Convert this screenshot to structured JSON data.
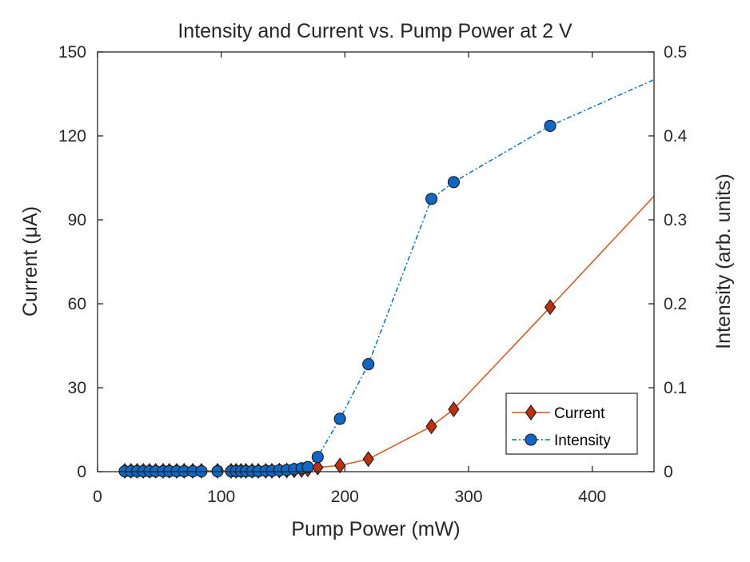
{
  "colors": {
    "current": "#d95319",
    "current_marker_fill": "#c0300f",
    "intensity": "#0072bd",
    "intensity_marker_fill": "#0e68c8",
    "axes": "#262626",
    "marker_edge": "#1a1a1a"
  },
  "chart_data": {
    "type": "line",
    "title": "Intensity and Current vs. Pump Power at 2 V",
    "xlabel": "Pump Power (mW)",
    "ylabel_left": "Current (μA)",
    "ylabel_right": "Intensity (arb. units)",
    "xlim": [
      0,
      450
    ],
    "ylim_left": [
      0,
      150
    ],
    "ylim_right": [
      0,
      0.5
    ],
    "xticks": [
      0,
      100,
      200,
      300,
      400
    ],
    "yticks_left": [
      0,
      30,
      60,
      90,
      120,
      150
    ],
    "yticks_right": [
      0,
      0.1,
      0.2,
      0.3,
      0.4,
      0.5
    ],
    "xtick_labels": [
      "0",
      "100",
      "200",
      "300",
      "400"
    ],
    "ytick_labels_left": [
      "0",
      "30",
      "60",
      "90",
      "120",
      "150"
    ],
    "ytick_labels_right": [
      "0",
      "0.1",
      "0.2",
      "0.3",
      "0.4",
      "0.5"
    ],
    "grid": false,
    "legend_position": "bottom-right",
    "series": [
      {
        "name": "Current",
        "axis": "left",
        "marker": "diamond",
        "line_style": "solid",
        "x": [
          22,
          27,
          32,
          37,
          42,
          47,
          53,
          58,
          64,
          70,
          77,
          84,
          97,
          108,
          112,
          116,
          120,
          125,
          130,
          136,
          141,
          147,
          153,
          159,
          165,
          170,
          178,
          196,
          219,
          270,
          288,
          366,
          450
        ],
        "y": [
          0.3,
          0.3,
          0.3,
          0.3,
          0.3,
          0.3,
          0.3,
          0.3,
          0.3,
          0.3,
          0.3,
          0.3,
          0.3,
          0.3,
          0.3,
          0.3,
          0.3,
          0.3,
          0.3,
          0.3,
          0.3,
          0.4,
          0.4,
          0.5,
          0.6,
          0.8,
          1.5,
          2.2,
          4.5,
          16.2,
          22.3,
          58.8,
          98.5
        ]
      },
      {
        "name": "Intensity",
        "axis": "right",
        "marker": "circle",
        "line_style": "dash-dot",
        "x": [
          22,
          27,
          32,
          37,
          42,
          47,
          53,
          58,
          64,
          70,
          77,
          84,
          97,
          108,
          112,
          116,
          120,
          125,
          130,
          136,
          141,
          147,
          153,
          159,
          165,
          170,
          178,
          196,
          219,
          270,
          288,
          366,
          450
        ],
        "y": [
          0.0005,
          0.0005,
          0.0005,
          0.0005,
          0.0005,
          0.0005,
          0.0005,
          0.0005,
          0.0005,
          0.0005,
          0.0005,
          0.0005,
          0.0005,
          0.0005,
          0.0005,
          0.0005,
          0.0005,
          0.0005,
          0.0005,
          0.001,
          0.001,
          0.0015,
          0.002,
          0.003,
          0.004,
          0.0055,
          0.0175,
          0.063,
          0.128,
          0.325,
          0.345,
          0.412,
          0.467
        ]
      }
    ]
  }
}
